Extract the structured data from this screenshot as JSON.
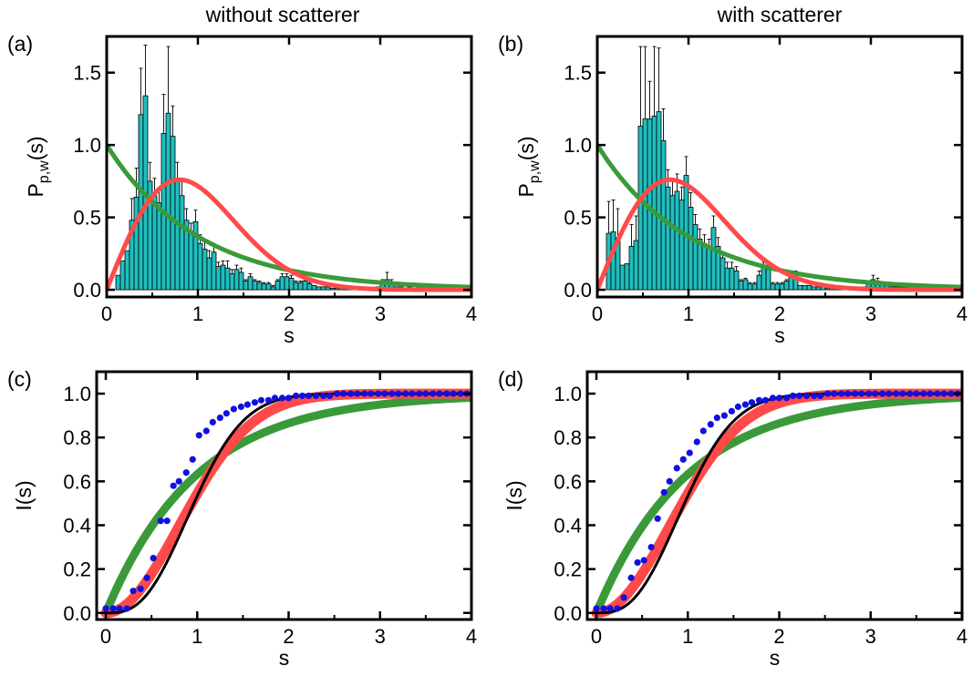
{
  "chart_data": [
    {
      "type": "bar",
      "panel_label": "(a)",
      "title": "without scatterer",
      "xlabel": "s",
      "ylabel_main": "P",
      "ylabel_sub": "p,w",
      "ylabel_tail": "(s)",
      "xlim": [
        0,
        4
      ],
      "ylim": [
        -0.05,
        1.75
      ],
      "xticks": [
        0,
        1,
        2,
        3,
        4
      ],
      "yticks": [
        0.0,
        0.5,
        1.0,
        1.5
      ],
      "bar_width": 0.05,
      "bar_color": "#1fbfbf",
      "bars_x": [
        0.125,
        0.175,
        0.225,
        0.275,
        0.325,
        0.375,
        0.425,
        0.475,
        0.525,
        0.575,
        0.625,
        0.675,
        0.725,
        0.775,
        0.825,
        0.875,
        0.925,
        0.975,
        1.025,
        1.075,
        1.125,
        1.175,
        1.225,
        1.275,
        1.325,
        1.375,
        1.425,
        1.475,
        1.525,
        1.575,
        1.625,
        1.675,
        1.725,
        1.775,
        1.825,
        1.875,
        1.925,
        1.975,
        2.025,
        2.075,
        2.125,
        2.175,
        2.225,
        2.275,
        2.325,
        2.375,
        2.425,
        2.475,
        2.525,
        2.575,
        2.625,
        2.675,
        2.725,
        2.775,
        2.825,
        2.875,
        2.925,
        2.975,
        3.025,
        3.075,
        3.125,
        3.175,
        3.225,
        3.275,
        3.325,
        3.375,
        3.425,
        3.475,
        3.525,
        3.575,
        3.625,
        3.675,
        3.725,
        3.775,
        3.825,
        3.875,
        3.925
      ],
      "bars_y": [
        0.1,
        0.2,
        0.27,
        0.48,
        0.64,
        1.21,
        1.34,
        0.75,
        0.65,
        0.6,
        1.08,
        1.22,
        1.06,
        0.76,
        0.65,
        0.48,
        0.4,
        0.47,
        0.32,
        0.28,
        0.22,
        0.26,
        0.16,
        0.17,
        0.15,
        0.11,
        0.14,
        0.12,
        0.06,
        0.09,
        0.06,
        0.05,
        0.04,
        0.04,
        0.02,
        0.06,
        0.09,
        0.09,
        0.08,
        0.05,
        0.05,
        0.06,
        0.04,
        0.03,
        0.02,
        0.02,
        0.02,
        0.01,
        0.01,
        0.01,
        0.01,
        0.01,
        0.01,
        0.01,
        0.01,
        0.01,
        0.01,
        0.02,
        0.04,
        0.07,
        0.04,
        0.02,
        0.02,
        0.01,
        0.02,
        0.01,
        0.02,
        0.01,
        0.01,
        0.01,
        0.01,
        0.01,
        0.01,
        0.01,
        0.01,
        0.01,
        0.01
      ],
      "bars_err": [
        0,
        0,
        0,
        0.15,
        0.2,
        0.32,
        0.35,
        0.13,
        0.12,
        0.1,
        0.27,
        0.46,
        0.21,
        0.12,
        0.1,
        0.08,
        0.06,
        0.08,
        0.06,
        0.05,
        0.05,
        0.05,
        0.03,
        0.03,
        0.05,
        0.03,
        0.03,
        0.03,
        0.01,
        0.02,
        0.01,
        0.01,
        0.01,
        0.01,
        0.01,
        0.01,
        0.02,
        0.02,
        0.02,
        0.01,
        0.01,
        0.01,
        0.01,
        0,
        0,
        0,
        0,
        0,
        0,
        0,
        0,
        0,
        0,
        0,
        0,
        0,
        0,
        0,
        0.03,
        0.05,
        0.03,
        0,
        0,
        0,
        0,
        0,
        0,
        0,
        0,
        0,
        0,
        0,
        0,
        0,
        0,
        0,
        0
      ],
      "curves": [
        {
          "kind": "poisson",
          "color": "#3a9a3a"
        },
        {
          "kind": "wigner",
          "color": "#ff4a4a"
        }
      ]
    },
    {
      "type": "bar",
      "panel_label": "(b)",
      "title": "with scatterer",
      "xlabel": "s",
      "ylabel_main": "P",
      "ylabel_sub": "p,w",
      "ylabel_tail": "(s)",
      "xlim": [
        0,
        4
      ],
      "ylim": [
        -0.05,
        1.75
      ],
      "xticks": [
        0,
        1,
        2,
        3,
        4
      ],
      "yticks": [
        0.0,
        0.5,
        1.0,
        1.5
      ],
      "bar_width": 0.05,
      "bar_color": "#1fbfbf",
      "bars_x": [
        0.125,
        0.175,
        0.225,
        0.275,
        0.325,
        0.375,
        0.425,
        0.475,
        0.525,
        0.575,
        0.625,
        0.675,
        0.725,
        0.775,
        0.825,
        0.875,
        0.925,
        0.975,
        1.025,
        1.075,
        1.125,
        1.175,
        1.225,
        1.275,
        1.325,
        1.375,
        1.425,
        1.475,
        1.525,
        1.575,
        1.625,
        1.675,
        1.725,
        1.775,
        1.825,
        1.875,
        1.925,
        1.975,
        2.025,
        2.075,
        2.125,
        2.175,
        2.225,
        2.275,
        2.325,
        2.375,
        2.425,
        2.475,
        2.525,
        2.575,
        2.625,
        2.675,
        2.725,
        2.775,
        2.825,
        2.875,
        2.925,
        2.975,
        3.025,
        3.075,
        3.125,
        3.175,
        3.225,
        3.275,
        3.325,
        3.375,
        3.425,
        3.475,
        3.525,
        3.575,
        3.625,
        3.675,
        3.725,
        3.775,
        3.825,
        3.875,
        3.925
      ],
      "bars_y": [
        0.39,
        0.4,
        0.36,
        0.17,
        0.18,
        0.3,
        0.34,
        1.13,
        1.18,
        1.18,
        1.2,
        1.23,
        1.03,
        0.71,
        0.65,
        0.68,
        0.62,
        0.79,
        0.57,
        0.45,
        0.35,
        0.32,
        0.29,
        0.43,
        0.3,
        0.22,
        0.15,
        0.15,
        0.13,
        0.06,
        0.07,
        0.04,
        0.04,
        0.1,
        0.16,
        0.14,
        0.04,
        0.04,
        0.04,
        0.06,
        0.1,
        0.1,
        0.03,
        0.03,
        0.03,
        0.02,
        0.02,
        0.02,
        0.01,
        0.03,
        0.02,
        0.02,
        0.02,
        0.01,
        0.01,
        0.02,
        0.02,
        0.05,
        0.07,
        0.06,
        0.04,
        0.03,
        0.02,
        0.02,
        0.02,
        0.02,
        0.02,
        0.01,
        0.01,
        0.01,
        0.01,
        0.01,
        0.01,
        0.01,
        0.01,
        0.01,
        0.01
      ],
      "bars_err": [
        0.22,
        0.22,
        0.2,
        0,
        0,
        0.15,
        0.17,
        0.55,
        0.5,
        0.26,
        0.48,
        0.44,
        0.22,
        0.12,
        0.11,
        0.12,
        0.09,
        0.13,
        0.1,
        0.07,
        0.07,
        0.06,
        0.06,
        0.08,
        0.06,
        0.04,
        0.04,
        0.04,
        0.03,
        0.01,
        0.01,
        0.01,
        0.01,
        0.03,
        0.03,
        0.03,
        0.01,
        0.01,
        0.01,
        0.01,
        0.03,
        0.03,
        0,
        0,
        0,
        0,
        0,
        0,
        0,
        0,
        0,
        0,
        0,
        0,
        0,
        0,
        0,
        0.01,
        0.03,
        0.02,
        0,
        0,
        0,
        0,
        0,
        0,
        0,
        0,
        0,
        0,
        0,
        0,
        0,
        0,
        0
      ],
      "curves": [
        {
          "kind": "poisson",
          "color": "#3a9a3a"
        },
        {
          "kind": "wigner",
          "color": "#ff4a4a"
        }
      ]
    },
    {
      "type": "scatter",
      "panel_label": "(c)",
      "xlabel": "s",
      "ylabel": "I(s)",
      "xlim": [
        -0.1,
        4
      ],
      "ylim": [
        -0.03,
        1.1
      ],
      "xticks": [
        0,
        1,
        2,
        3,
        4
      ],
      "yticks": [
        0.0,
        0.2,
        0.4,
        0.6,
        0.8,
        1.0
      ],
      "points_color": "#1010e0",
      "points_x": [
        0,
        0.08,
        0.15,
        0.23,
        0.3,
        0.38,
        0.45,
        0.52,
        0.6,
        0.67,
        0.74,
        0.8,
        0.88,
        0.95,
        1.02,
        1.1,
        1.17,
        1.25,
        1.32,
        1.4,
        1.48,
        1.55,
        1.63,
        1.7,
        1.78,
        1.85,
        1.93,
        2.0,
        2.08,
        2.15,
        2.22,
        2.3,
        2.38,
        2.45,
        2.53,
        2.6,
        2.68,
        2.75,
        2.83,
        2.9,
        2.98,
        3.05,
        3.13,
        3.2,
        3.28,
        3.35,
        3.43,
        3.5,
        3.58,
        3.65,
        3.73,
        3.8,
        3.88,
        3.95
      ],
      "points_y": [
        0.02,
        0.02,
        0.02,
        0.02,
        0.1,
        0.11,
        0.16,
        0.25,
        0.42,
        0.42,
        0.58,
        0.6,
        0.64,
        0.7,
        0.81,
        0.83,
        0.87,
        0.89,
        0.91,
        0.93,
        0.94,
        0.95,
        0.96,
        0.97,
        0.97,
        0.98,
        0.98,
        0.98,
        0.99,
        0.99,
        0.99,
        0.99,
        0.99,
        0.99,
        1.0,
        1.0,
        1.0,
        1.0,
        1.0,
        1.0,
        1.0,
        1.0,
        1.0,
        1.0,
        1.0,
        1.0,
        1.0,
        1.0,
        1.0,
        1.0,
        1.0,
        1.0,
        1.0,
        1.0
      ],
      "curves": [
        {
          "kind": "cdf_poisson",
          "color": "#3a9a3a"
        },
        {
          "kind": "cdf_wigner",
          "color": "#ff4a4a"
        },
        {
          "kind": "cdf_gue",
          "color": "#000000"
        }
      ]
    },
    {
      "type": "scatter",
      "panel_label": "(d)",
      "xlabel": "s",
      "ylabel": "I(s)",
      "xlim": [
        -0.1,
        4
      ],
      "ylim": [
        -0.03,
        1.1
      ],
      "xticks": [
        0,
        1,
        2,
        3,
        4
      ],
      "yticks": [
        0.0,
        0.2,
        0.4,
        0.6,
        0.8,
        1.0
      ],
      "points_color": "#1010e0",
      "points_x": [
        0,
        0.08,
        0.15,
        0.23,
        0.3,
        0.38,
        0.45,
        0.52,
        0.6,
        0.67,
        0.74,
        0.8,
        0.88,
        0.95,
        1.02,
        1.1,
        1.17,
        1.25,
        1.32,
        1.4,
        1.48,
        1.55,
        1.63,
        1.7,
        1.78,
        1.85,
        1.93,
        2.0,
        2.08,
        2.15,
        2.22,
        2.3,
        2.38,
        2.45,
        2.53,
        2.6,
        2.68,
        2.75,
        2.83,
        2.9,
        2.98,
        3.05,
        3.13,
        3.2,
        3.28,
        3.35,
        3.43,
        3.5,
        3.58,
        3.65,
        3.73,
        3.8,
        3.88,
        3.95
      ],
      "points_y": [
        0.02,
        0.02,
        0.02,
        0.02,
        0.07,
        0.16,
        0.23,
        0.24,
        0.3,
        0.43,
        0.55,
        0.6,
        0.66,
        0.7,
        0.73,
        0.78,
        0.83,
        0.86,
        0.89,
        0.9,
        0.92,
        0.94,
        0.95,
        0.96,
        0.97,
        0.97,
        0.98,
        0.98,
        0.98,
        0.99,
        0.99,
        0.99,
        0.99,
        0.99,
        1.0,
        1.0,
        1.0,
        1.0,
        1.0,
        1.0,
        1.0,
        1.0,
        1.0,
        1.0,
        1.0,
        1.0,
        1.0,
        1.0,
        1.0,
        1.0,
        1.0,
        1.0,
        1.0,
        1.0
      ],
      "curves": [
        {
          "kind": "cdf_poisson",
          "color": "#3a9a3a"
        },
        {
          "kind": "cdf_wigner",
          "color": "#ff4a4a"
        },
        {
          "kind": "cdf_gue",
          "color": "#000000"
        }
      ]
    }
  ]
}
